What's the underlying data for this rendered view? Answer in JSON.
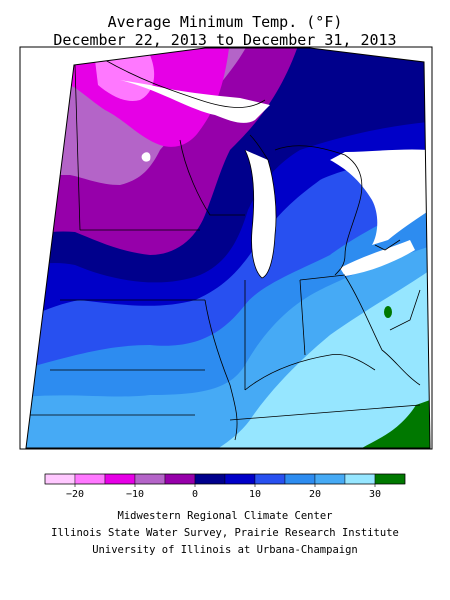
{
  "title": {
    "line1": "Average Minimum Temp. (°F)",
    "line2": "December 22, 2013 to December 31, 2013"
  },
  "legend": {
    "colors": [
      "#ffc8ff",
      "#ff78ff",
      "#e600e6",
      "#b464c8",
      "#9600aa",
      "#00008c",
      "#0000c8",
      "#2850f0",
      "#2d8cf0",
      "#46aaf5",
      "#96e6ff",
      "#007800"
    ],
    "tick_labels": [
      "−20",
      "−10",
      "0",
      "10",
      "20",
      "30"
    ],
    "tick_values": [
      -20,
      -10,
      0,
      10,
      20,
      30
    ]
  },
  "credits": {
    "line1": "Midwestern Regional Climate Center",
    "line2": "Illinois State Water Survey, Prairie Research Institute",
    "line3": "University of Illinois at Urbana-Champaign"
  },
  "map": {
    "region": "Midwest United States",
    "water_color": "#ffffff",
    "boundary_color": "#000000"
  }
}
